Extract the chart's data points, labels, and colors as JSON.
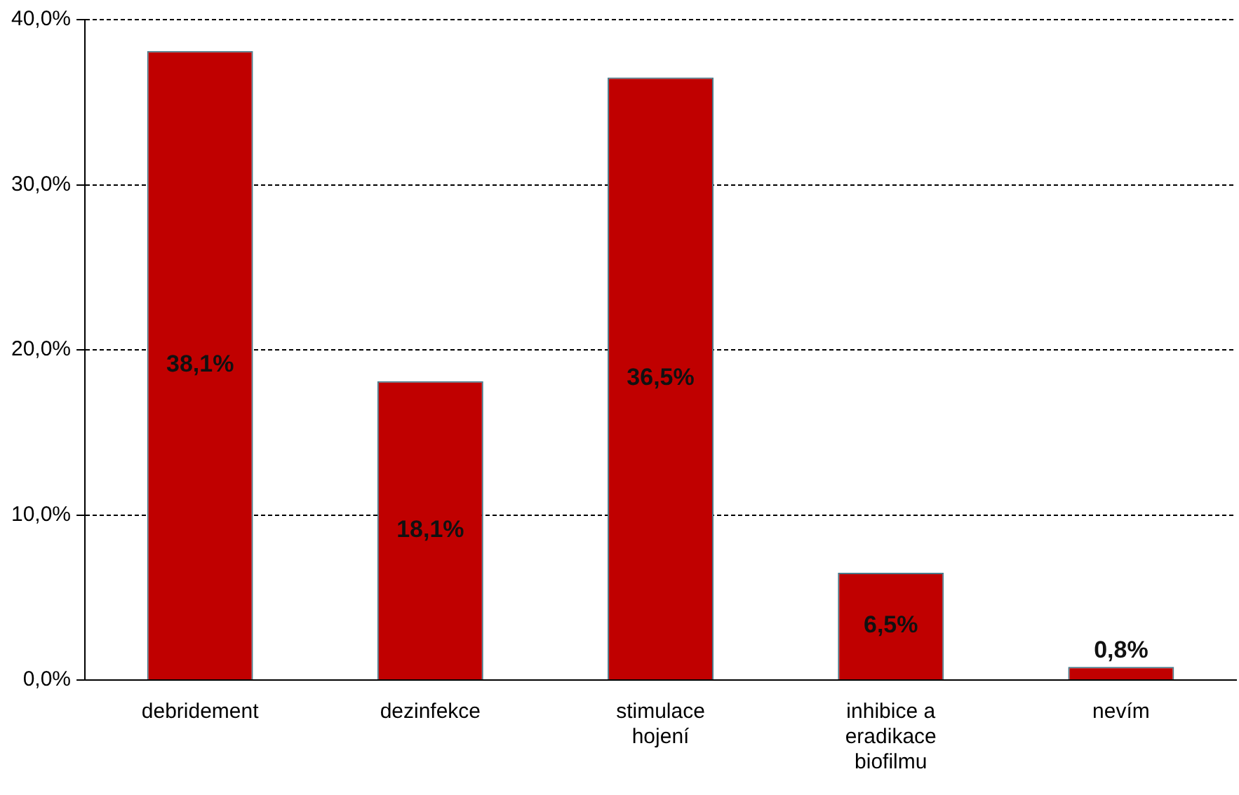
{
  "chart_data": {
    "type": "bar",
    "categories": [
      "debridement",
      "dezinfekce",
      "stimulace hojení",
      "inhibice a eradikace biofilmu",
      "nevím"
    ],
    "values": [
      38.1,
      18.1,
      36.5,
      6.5,
      0.8
    ],
    "value_labels": [
      "38,1%",
      "18,1%",
      "36,5%",
      "6,5%",
      "0,8%"
    ],
    "color": "#c00000",
    "ylim": [
      0,
      40
    ],
    "yticks": [
      {
        "value": 0,
        "label": "0,0%"
      },
      {
        "value": 10,
        "label": "10,0%"
      },
      {
        "value": 20,
        "label": "20,0%"
      },
      {
        "value": 30,
        "label": "30,0%"
      },
      {
        "value": 40,
        "label": "40,0%"
      }
    ],
    "grid": "y",
    "legend": false
  }
}
